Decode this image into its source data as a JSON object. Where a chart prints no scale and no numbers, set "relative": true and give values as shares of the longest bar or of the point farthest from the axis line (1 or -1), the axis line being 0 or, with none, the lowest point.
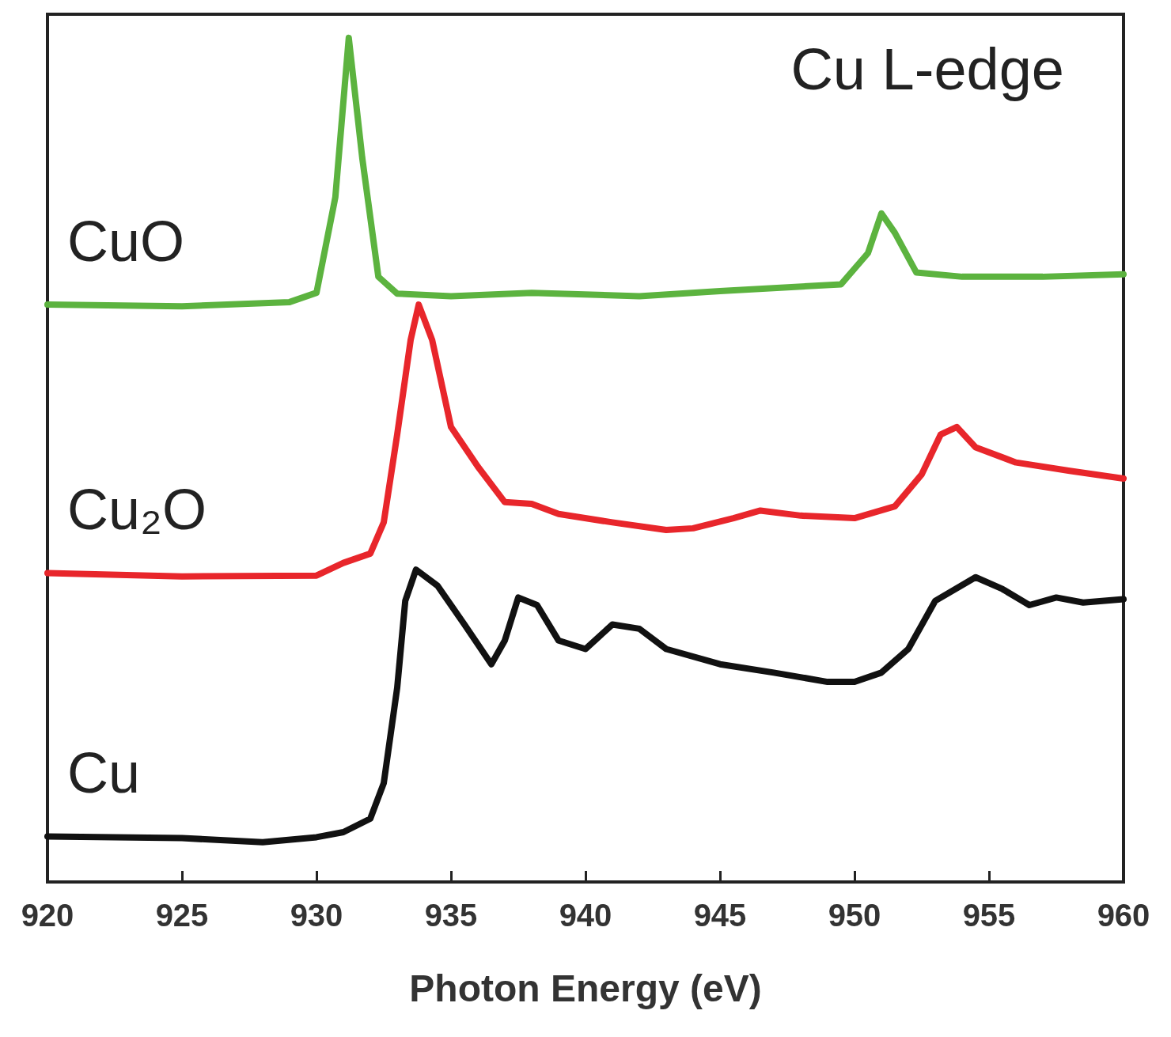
{
  "chart_data": {
    "type": "line",
    "title": "Cu L-edge",
    "xlabel": "Photon Energy (eV)",
    "relative": true,
    "xlim": [
      920,
      960
    ],
    "xticks": [
      920,
      925,
      930,
      935,
      940,
      945,
      950,
      955,
      960
    ],
    "grid": false,
    "legend": false,
    "line_style": "solid",
    "series": [
      {
        "name": "CuO",
        "color": "#5cb33f",
        "x": [
          920,
          925,
          929,
          930,
          930.7,
          931.2,
          931.7,
          932.3,
          933,
          935,
          938,
          942,
          945,
          949.5,
          950.5,
          951,
          951.5,
          952.3,
          954,
          957,
          960
        ],
        "values": [
          0.684,
          0.682,
          0.687,
          0.698,
          0.811,
          1.0,
          0.858,
          0.717,
          0.697,
          0.694,
          0.698,
          0.694,
          0.7,
          0.708,
          0.745,
          0.792,
          0.769,
          0.722,
          0.717,
          0.717,
          0.72
        ]
      },
      {
        "name": "Cu₂O",
        "color": "#e8262b",
        "x": [
          920,
          925,
          930,
          931,
          932,
          932.5,
          933,
          933.5,
          933.8,
          934.3,
          935,
          936,
          937,
          938,
          939,
          941,
          943,
          944,
          945.5,
          946.5,
          948,
          950,
          951.5,
          952.5,
          953.2,
          953.8,
          954.5,
          956,
          958,
          960
        ],
        "values": [
          0.366,
          0.362,
          0.363,
          0.378,
          0.389,
          0.426,
          0.53,
          0.642,
          0.684,
          0.642,
          0.539,
          0.492,
          0.45,
          0.448,
          0.436,
          0.426,
          0.417,
          0.419,
          0.431,
          0.44,
          0.434,
          0.431,
          0.445,
          0.483,
          0.53,
          0.539,
          0.515,
          0.497,
          0.487,
          0.478
        ]
      },
      {
        "name": "Cu",
        "color": "#111111",
        "x": [
          920,
          925,
          928,
          930,
          931,
          932,
          932.5,
          933,
          933.3,
          933.7,
          934.5,
          935.5,
          936.5,
          937,
          937.5,
          938.2,
          939,
          940,
          941,
          942,
          943,
          945,
          947,
          949,
          950,
          951,
          952,
          953,
          954.5,
          955.5,
          956.5,
          957.5,
          958.5,
          960
        ],
        "values": [
          0.054,
          0.052,
          0.047,
          0.053,
          0.059,
          0.075,
          0.117,
          0.23,
          0.333,
          0.37,
          0.351,
          0.305,
          0.258,
          0.286,
          0.337,
          0.328,
          0.286,
          0.276,
          0.305,
          0.3,
          0.276,
          0.258,
          0.248,
          0.237,
          0.237,
          0.248,
          0.276,
          0.333,
          0.361,
          0.347,
          0.328,
          0.337,
          0.331,
          0.335
        ]
      }
    ]
  }
}
